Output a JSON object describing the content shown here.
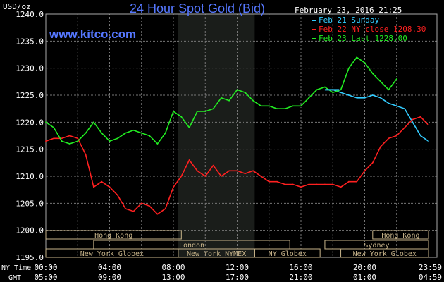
{
  "header": {
    "unit": "USD/oz",
    "title": "24 Hour Spot Gold (Bid)",
    "date": "February 23, 2016 21:25",
    "brand": "www.kitco.com"
  },
  "legend": [
    {
      "label": "Feb 21 Sunday",
      "color": "#33ccff"
    },
    {
      "label": "Feb 22 NY close 1208.30",
      "color": "#ff2020"
    },
    {
      "label": "Feb 23 Last 1228.00",
      "color": "#22ee22"
    }
  ],
  "colors": {
    "grid": "#777777",
    "frame": "#aaaaaa",
    "shade": "#1a1d1a",
    "session": "#c8b48a",
    "text": "#ffffff",
    "title": "#5577ff"
  },
  "row_labels": {
    "ny_time": "NY Time",
    "gmt": "GMT"
  },
  "sessions": [
    {
      "label": "Hong Kong",
      "row": 0
    },
    {
      "label": "Hong Kong",
      "row": 0
    },
    {
      "label": "London",
      "row": 1
    },
    {
      "label": "Sydney",
      "row": 1
    },
    {
      "label": "New York Globex",
      "row": 2
    },
    {
      "label": "New York NYMEX",
      "row": 2
    },
    {
      "label": "NY Globex",
      "row": 2
    },
    {
      "label": "New York Globex",
      "row": 2
    }
  ],
  "chart_data": {
    "type": "line",
    "title": "24 Hour Spot Gold (Bid)",
    "ylabel": "USD/oz",
    "ylim": [
      1195,
      1240
    ],
    "y_ticks": [
      "1195.0",
      "1200.0",
      "1205.0",
      "1210.0",
      "1215.0",
      "1220.0",
      "1225.0",
      "1230.0",
      "1235.0",
      "1240.0"
    ],
    "x_ticks_ny": [
      "00:00",
      "04:00",
      "08:00",
      "12:00",
      "16:00",
      "20:00",
      "23:59"
    ],
    "x_ticks_gmt": [
      "05:00",
      "09:00",
      "13:00",
      "17:00",
      "21:00",
      "01:00",
      "04:59"
    ],
    "xlim_hours": [
      0,
      24
    ],
    "shaded_hours": [
      8.3,
      13.1
    ],
    "grid": true,
    "legend_position": "top-right",
    "series": [
      {
        "name": "Feb 21 Sunday",
        "color": "#33ccff",
        "points": [
          [
            18,
            1226
          ],
          [
            18.5,
            1225.5
          ],
          [
            19,
            1225
          ],
          [
            19.5,
            1224.5
          ],
          [
            20,
            1224.5
          ],
          [
            20.5,
            1225
          ],
          [
            21,
            1224.5
          ],
          [
            21.5,
            1223.5
          ],
          [
            22,
            1223
          ],
          [
            22.5,
            1222.5
          ],
          [
            23,
            1220
          ],
          [
            23.5,
            1217.5
          ],
          [
            23.99,
            1216.5
          ]
        ]
      },
      {
        "name": "Feb 22 NY close 1208.30",
        "color": "#ff2020",
        "points": [
          [
            0,
            1216.5
          ],
          [
            0.5,
            1217
          ],
          [
            1,
            1217
          ],
          [
            1.5,
            1217.5
          ],
          [
            2,
            1217
          ],
          [
            2.5,
            1214
          ],
          [
            3,
            1208
          ],
          [
            3.5,
            1209
          ],
          [
            4,
            1208
          ],
          [
            4.5,
            1206.5
          ],
          [
            5,
            1204
          ],
          [
            5.5,
            1203.5
          ],
          [
            6,
            1205
          ],
          [
            6.5,
            1204.5
          ],
          [
            7,
            1203
          ],
          [
            7.5,
            1204
          ],
          [
            8,
            1208
          ],
          [
            8.5,
            1210
          ],
          [
            9,
            1213
          ],
          [
            9.5,
            1211
          ],
          [
            10,
            1210
          ],
          [
            10.5,
            1212
          ],
          [
            11,
            1210
          ],
          [
            11.5,
            1211
          ],
          [
            12,
            1211
          ],
          [
            12.5,
            1210.5
          ],
          [
            13,
            1211
          ],
          [
            13.5,
            1210
          ],
          [
            14,
            1209
          ],
          [
            14.5,
            1209
          ],
          [
            15,
            1208.5
          ],
          [
            15.5,
            1208.5
          ],
          [
            16,
            1208
          ],
          [
            16.5,
            1208.5
          ],
          [
            17,
            1208.5
          ],
          [
            17.5,
            1208.5
          ],
          [
            18,
            1208.5
          ],
          [
            18.5,
            1208
          ],
          [
            19,
            1209
          ],
          [
            19.5,
            1209
          ],
          [
            20,
            1211
          ],
          [
            20.5,
            1212.5
          ],
          [
            21,
            1215.5
          ],
          [
            21.5,
            1217
          ],
          [
            22,
            1217.5
          ],
          [
            22.5,
            1219
          ],
          [
            23,
            1220.5
          ],
          [
            23.5,
            1221
          ],
          [
            23.99,
            1219.5
          ]
        ]
      },
      {
        "name": "Feb 23 Last 1228.00",
        "color": "#22ee22",
        "points": [
          [
            0,
            1220
          ],
          [
            0.5,
            1219
          ],
          [
            1,
            1216.5
          ],
          [
            1.5,
            1216
          ],
          [
            2,
            1216.5
          ],
          [
            2.5,
            1218
          ],
          [
            3,
            1220
          ],
          [
            3.5,
            1218
          ],
          [
            4,
            1216.5
          ],
          [
            4.5,
            1217
          ],
          [
            5,
            1218
          ],
          [
            5.5,
            1218.5
          ],
          [
            6,
            1218
          ],
          [
            6.5,
            1217.5
          ],
          [
            7,
            1216
          ],
          [
            7.5,
            1218
          ],
          [
            8,
            1222
          ],
          [
            8.5,
            1221
          ],
          [
            9,
            1219
          ],
          [
            9.5,
            1222
          ],
          [
            10,
            1222
          ],
          [
            10.5,
            1222.5
          ],
          [
            11,
            1224.5
          ],
          [
            11.5,
            1224
          ],
          [
            12,
            1226
          ],
          [
            12.5,
            1225.5
          ],
          [
            13,
            1224
          ],
          [
            13.5,
            1223
          ],
          [
            14,
            1223
          ],
          [
            14.5,
            1222.5
          ],
          [
            15,
            1222.5
          ],
          [
            15.5,
            1223
          ],
          [
            16,
            1223
          ],
          [
            16.5,
            1224.5
          ],
          [
            17,
            1226
          ],
          [
            17.5,
            1226.5
          ],
          [
            18,
            1225.5
          ],
          [
            18.5,
            1226
          ],
          [
            19,
            1230
          ],
          [
            19.5,
            1232
          ],
          [
            20,
            1231
          ],
          [
            20.5,
            1229
          ],
          [
            21,
            1227.5
          ],
          [
            21.5,
            1226
          ],
          [
            22,
            1228
          ]
        ]
      }
    ]
  }
}
